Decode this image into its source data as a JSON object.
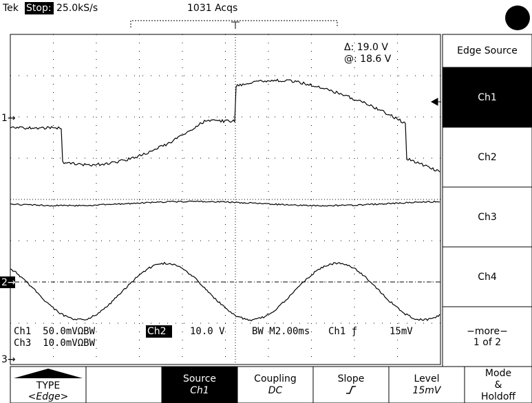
{
  "header": {
    "brand": "Tek",
    "state": "Stop:",
    "rate": "25.0kS/s",
    "acqs": "1031 Acqs"
  },
  "readout": {
    "delta": "Δ: 19.0 V",
    "at": "@: 18.6 V"
  },
  "channel_markers": [
    "1→",
    "2→",
    "3→"
  ],
  "status": {
    "ch1": "Ch1  50.0mVΩBW",
    "ch2_badge": "Ch2",
    "ch2": "10.0 V",
    "timebase": "BW M2.00ms",
    "trigger": "Ch1 ƒ",
    "level": "15mV",
    "ch3": "Ch3  10.0mVΩBW"
  },
  "side_menu": {
    "title": "Edge Source",
    "items": [
      "Ch1",
      "Ch2",
      "Ch3",
      "Ch4"
    ],
    "more": "−more−",
    "page": "1 of 2"
  },
  "bottom_menu": [
    {
      "label": "TYPE",
      "value": "<Edge>"
    },
    {
      "label": "Source",
      "value": "Ch1"
    },
    {
      "label": "Coupling",
      "value": "DC"
    },
    {
      "label": "Slope"
    },
    {
      "label": "Level",
      "value": "15mV"
    },
    {
      "label": "Mode",
      "value": "&",
      "extra": "Holdoff"
    }
  ]
}
